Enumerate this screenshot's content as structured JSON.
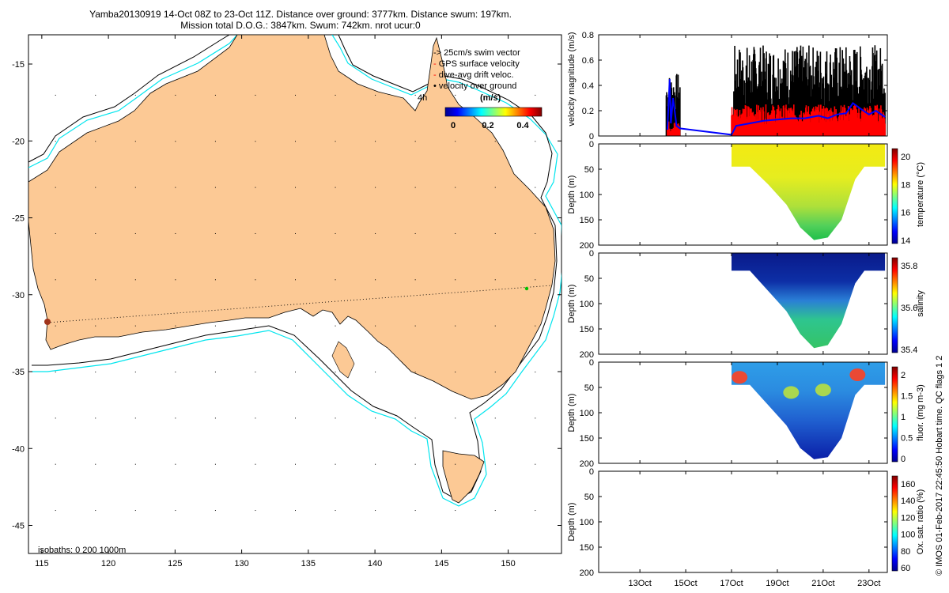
{
  "title": {
    "line1": "Yamba20130919 14-Oct 08Z to 23-Oct 11Z. Distance over ground: 3777km. Distance swum: 197km.",
    "line2": "Mission total D.O.G.: 3847km. Swum: 742km. nrot ucur:0"
  },
  "side_note": "© IMOS 01-Feb-2017 22:45:50 Hobart time. QC flags 1  2",
  "colors": {
    "land": "#fcc995",
    "isobath_200": "#000000",
    "isobath_1000": "#00e5ee",
    "track": "#000000",
    "glider_marker": "#00c000",
    "swim_vector": "#0000ff",
    "gps_surface_velocity": "#ff0000",
    "velocity_over_ground": "#000000"
  },
  "map": {
    "x_ticks": [
      115,
      120,
      125,
      130,
      135,
      140,
      145,
      150
    ],
    "y_ticks": [
      -15,
      -20,
      -25,
      -30,
      -35,
      -40,
      -45
    ],
    "legend": [
      {
        "symbol": "->",
        "label": "25cm/s swim vector"
      },
      {
        "symbol": "-",
        "label": "GPS surface velocity"
      },
      {
        "symbol": "-",
        "label": "dive-avg drift veloc."
      },
      {
        "symbol": "•",
        "label": "velocity over ground"
      }
    ],
    "arrow_scale_label": "4h",
    "colorbar_label": "(m/s)",
    "colorbar_ticks": [
      "0",
      "0.2",
      "0.4"
    ],
    "isobaths_note": "isobaths: 0   200  1000m"
  },
  "chart_data": [
    {
      "type": "bar",
      "name": "velocity magnitude",
      "ylabel": "velocity magnitude (m/s)",
      "ylim": [
        0,
        0.8
      ],
      "y_ticks": [
        "0",
        "0.2",
        "0.4",
        "0.6",
        "0.8"
      ],
      "x_tick_labels": [
        "13Oct",
        "15Oct",
        "17Oct",
        "19Oct",
        "21Oct",
        "23Oct"
      ],
      "x_tick_days": [
        13,
        15,
        17,
        19,
        21,
        23
      ],
      "xlim_days": [
        11.2,
        23.8
      ],
      "series": [
        {
          "name": "velocity over ground (black)",
          "segments": [
            {
              "start_day": 14.15,
              "end_day": 14.75,
              "peak": 0.5,
              "base": 0.25
            },
            {
              "start_day": 17.1,
              "end_day": 23.7,
              "peak": 0.72,
              "base": 0.35
            }
          ]
        },
        {
          "name": "GPS surface velocity (red)",
          "segments": [
            {
              "start_day": 14.2,
              "end_day": 14.75,
              "peak": 0.12,
              "base": 0.04
            },
            {
              "start_day": 17.0,
              "end_day": 23.7,
              "peak": 0.25,
              "base": 0.15
            }
          ]
        },
        {
          "name": "swim velocity (blue)",
          "points": [
            [
              14.2,
              0.05
            ],
            [
              14.3,
              0.45
            ],
            [
              14.35,
              0.1
            ],
            [
              14.45,
              0.3
            ],
            [
              14.6,
              0.08
            ],
            [
              14.75,
              0.06
            ],
            [
              17.0,
              0.01
            ],
            [
              17.2,
              0.08
            ],
            [
              17.8,
              0.1
            ],
            [
              18.4,
              0.12
            ],
            [
              19.0,
              0.13
            ],
            [
              19.6,
              0.14
            ],
            [
              20.2,
              0.14
            ],
            [
              20.8,
              0.16
            ],
            [
              21.2,
              0.14
            ],
            [
              21.6,
              0.17
            ],
            [
              22.0,
              0.18
            ],
            [
              22.3,
              0.26
            ],
            [
              22.6,
              0.22
            ],
            [
              23.0,
              0.17
            ],
            [
              23.3,
              0.2
            ],
            [
              23.7,
              0.15
            ]
          ]
        }
      ]
    },
    {
      "type": "heatmap",
      "name": "temperature",
      "ylabel": "Depth (m)",
      "colorbar_label": "temperature (°C)",
      "colorbar_ticks": [
        "14",
        "16",
        "18",
        "20"
      ],
      "clim": [
        14,
        21
      ],
      "ylim": [
        0,
        200
      ],
      "y_ticks": [
        "0",
        "50",
        "100",
        "150",
        "200"
      ],
      "profile_envelope_days_depth": [
        [
          17.0,
          45
        ],
        [
          17.8,
          45
        ],
        [
          18.6,
          80
        ],
        [
          19.4,
          120
        ],
        [
          20.0,
          165
        ],
        [
          20.6,
          190
        ],
        [
          21.2,
          185
        ],
        [
          21.8,
          150
        ],
        [
          22.4,
          70
        ],
        [
          22.8,
          45
        ],
        [
          23.7,
          45
        ]
      ],
      "surface_value": 20.3,
      "bottom_value": 15.2
    },
    {
      "type": "heatmap",
      "name": "salinity",
      "ylabel": "Depth (m)",
      "colorbar_label": "salinity",
      "colorbar_ticks": [
        "35.4",
        "35.6",
        "35.8"
      ],
      "clim": [
        35.3,
        35.9
      ],
      "ylim": [
        0,
        200
      ],
      "y_ticks": [
        "0",
        "50",
        "100",
        "150",
        "200"
      ],
      "profile_envelope_days_depth": [
        [
          17.0,
          35
        ],
        [
          17.8,
          35
        ],
        [
          18.6,
          75
        ],
        [
          19.4,
          115
        ],
        [
          20.0,
          160
        ],
        [
          20.6,
          188
        ],
        [
          21.2,
          182
        ],
        [
          21.8,
          140
        ],
        [
          22.4,
          60
        ],
        [
          22.8,
          35
        ],
        [
          23.7,
          35
        ]
      ],
      "surface_value": 35.32,
      "bottom_value": 35.55
    },
    {
      "type": "heatmap",
      "name": "fluorescence",
      "ylabel": "Depth (m)",
      "colorbar_label": "fluor. (mg m-3)",
      "colorbar_ticks": [
        "0",
        "0.5",
        "1",
        "1.5",
        "2"
      ],
      "clim": [
        0,
        2
      ],
      "ylim": [
        0,
        200
      ],
      "y_ticks": [
        "0",
        "50",
        "100",
        "150",
        "200"
      ],
      "profile_envelope_days_depth": [
        [
          17.0,
          45
        ],
        [
          17.8,
          45
        ],
        [
          18.6,
          85
        ],
        [
          19.4,
          125
        ],
        [
          20.0,
          170
        ],
        [
          20.6,
          192
        ],
        [
          21.2,
          188
        ],
        [
          21.8,
          150
        ],
        [
          22.4,
          65
        ],
        [
          22.8,
          45
        ],
        [
          23.7,
          45
        ]
      ],
      "hotspots": [
        [
          17.35,
          30,
          1.9
        ],
        [
          22.5,
          25,
          1.6
        ],
        [
          19.6,
          60,
          0.9
        ],
        [
          21.0,
          55,
          0.85
        ]
      ],
      "surface_value": 0.7,
      "bottom_value": 0.15
    },
    {
      "type": "heatmap",
      "name": "oxygen saturation",
      "ylabel": "Depth (m)",
      "colorbar_label": "Ox. sat. ratio (%)",
      "colorbar_ticks": [
        "60",
        "80",
        "100",
        "120",
        "140",
        "160"
      ],
      "clim": [
        60,
        170
      ],
      "ylim": [
        0,
        200
      ],
      "y_ticks": [
        "0",
        "50",
        "100",
        "150",
        "200"
      ],
      "x_tick_labels": [
        "13Oct",
        "15Oct",
        "17Oct",
        "19Oct",
        "21Oct",
        "23Oct"
      ],
      "x_tick_days": [
        13,
        15,
        17,
        19,
        21,
        23
      ],
      "xlim_days": [
        11.2,
        23.8
      ]
    }
  ]
}
